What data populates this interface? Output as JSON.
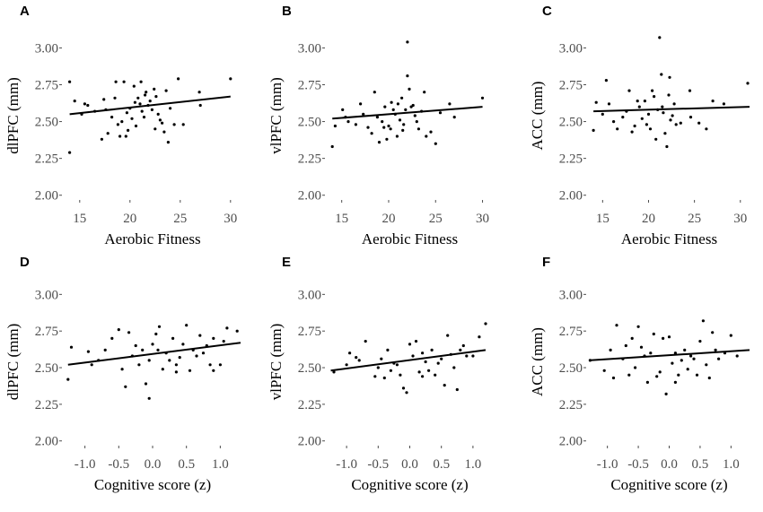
{
  "chart_data": [
    {
      "type": "scatter",
      "panel": "A",
      "xlabel": "Aerobic Fitness",
      "ylabel": "dlPFC (mm)",
      "xlim": [
        13.5,
        31
      ],
      "ylim": [
        1.98,
        3.1
      ],
      "xticks": [
        15,
        20,
        25,
        30
      ],
      "xtick_labels": [
        "15",
        "20",
        "25",
        "30"
      ],
      "yticks": [
        2.0,
        2.25,
        2.5,
        2.75,
        3.0
      ],
      "ytick_labels": [
        "2.00",
        "2.25",
        "2.50",
        "2.75",
        "3.00"
      ],
      "fit": [
        [
          14,
          2.55
        ],
        [
          30,
          2.67
        ]
      ],
      "points": [
        [
          14,
          2.29
        ],
        [
          14,
          2.77
        ],
        [
          14.5,
          2.64
        ],
        [
          15.2,
          2.55
        ],
        [
          15.5,
          2.62
        ],
        [
          15.8,
          2.61
        ],
        [
          16.5,
          2.57
        ],
        [
          17.2,
          2.38
        ],
        [
          17.4,
          2.65
        ],
        [
          17.6,
          2.58
        ],
        [
          17.8,
          2.42
        ],
        [
          18.2,
          2.53
        ],
        [
          18.5,
          2.66
        ],
        [
          18.6,
          2.77
        ],
        [
          18.8,
          2.48
        ],
        [
          19,
          2.4
        ],
        [
          19.2,
          2.5
        ],
        [
          19.4,
          2.77
        ],
        [
          19.6,
          2.4
        ],
        [
          19.8,
          2.44
        ],
        [
          20,
          2.59
        ],
        [
          20.2,
          2.52
        ],
        [
          20.4,
          2.74
        ],
        [
          20.6,
          2.47
        ],
        [
          20.8,
          2.66
        ],
        [
          21,
          2.62
        ],
        [
          21.2,
          2.57
        ],
        [
          21.4,
          2.53
        ],
        [
          21.6,
          2.7
        ],
        [
          21.8,
          2.61
        ],
        [
          22,
          2.64
        ],
        [
          22.2,
          2.58
        ],
        [
          22.4,
          2.72
        ],
        [
          22.6,
          2.67
        ],
        [
          22.8,
          2.55
        ],
        [
          23,
          2.51
        ],
        [
          23.2,
          2.49
        ],
        [
          23.4,
          2.43
        ],
        [
          23.6,
          2.71
        ],
        [
          23.8,
          2.36
        ],
        [
          24,
          2.59
        ],
        [
          24.4,
          2.48
        ],
        [
          24.8,
          2.79
        ],
        [
          25.3,
          2.48
        ],
        [
          26.9,
          2.7
        ],
        [
          27,
          2.61
        ],
        [
          30,
          2.79
        ],
        [
          20.5,
          2.63
        ],
        [
          21.5,
          2.68
        ],
        [
          22.5,
          2.45
        ],
        [
          21.1,
          2.77
        ],
        [
          19.7,
          2.56
        ]
      ]
    },
    {
      "type": "scatter",
      "panel": "B",
      "xlabel": "Aerobic Fitness",
      "ylabel": "vlPFC (mm)",
      "xlim": [
        13.5,
        31
      ],
      "ylim": [
        1.98,
        3.1
      ],
      "xticks": [
        15,
        20,
        25,
        30
      ],
      "xtick_labels": [
        "15",
        "20",
        "25",
        "30"
      ],
      "yticks": [
        2.0,
        2.25,
        2.5,
        2.75,
        3.0
      ],
      "ytick_labels": [
        "2.00",
        "2.25",
        "2.50",
        "2.75",
        "3.00"
      ],
      "fit": [
        [
          14,
          2.52
        ],
        [
          30,
          2.6
        ]
      ],
      "points": [
        [
          14,
          2.33
        ],
        [
          14.3,
          2.47
        ],
        [
          15.1,
          2.58
        ],
        [
          15.4,
          2.53
        ],
        [
          15.7,
          2.5
        ],
        [
          16.5,
          2.48
        ],
        [
          17,
          2.62
        ],
        [
          17.3,
          2.55
        ],
        [
          17.8,
          2.46
        ],
        [
          18.2,
          2.42
        ],
        [
          18.5,
          2.7
        ],
        [
          18.8,
          2.53
        ],
        [
          19,
          2.36
        ],
        [
          19.3,
          2.5
        ],
        [
          19.5,
          2.46
        ],
        [
          19.8,
          2.38
        ],
        [
          20,
          2.47
        ],
        [
          20.3,
          2.63
        ],
        [
          20.5,
          2.58
        ],
        [
          20.7,
          2.55
        ],
        [
          20.9,
          2.4
        ],
        [
          21,
          2.62
        ],
        [
          21.2,
          2.51
        ],
        [
          21.4,
          2.66
        ],
        [
          21.6,
          2.48
        ],
        [
          21.8,
          2.58
        ],
        [
          22,
          3.04
        ],
        [
          22,
          2.81
        ],
        [
          22.2,
          2.72
        ],
        [
          22.4,
          2.6
        ],
        [
          22.6,
          2.61
        ],
        [
          22.8,
          2.54
        ],
        [
          23,
          2.5
        ],
        [
          23.2,
          2.45
        ],
        [
          23.5,
          2.57
        ],
        [
          23.8,
          2.7
        ],
        [
          24,
          2.4
        ],
        [
          24.5,
          2.43
        ],
        [
          25,
          2.35
        ],
        [
          25.5,
          2.56
        ],
        [
          26.5,
          2.62
        ],
        [
          27,
          2.53
        ],
        [
          30,
          2.66
        ],
        [
          20.2,
          2.45
        ],
        [
          21.5,
          2.44
        ],
        [
          19.6,
          2.6
        ]
      ]
    },
    {
      "type": "scatter",
      "panel": "C",
      "xlabel": "Aerobic Fitness",
      "ylabel": "ACC (mm)",
      "xlim": [
        13.5,
        31
      ],
      "ylim": [
        1.98,
        3.1
      ],
      "xticks": [
        15,
        20,
        25,
        30
      ],
      "xtick_labels": [
        "15",
        "20",
        "25",
        "30"
      ],
      "yticks": [
        2.0,
        2.25,
        2.5,
        2.75,
        3.0
      ],
      "ytick_labels": [
        "2.00",
        "2.25",
        "2.50",
        "2.75",
        "3.00"
      ],
      "fit": [
        [
          14,
          2.57
        ],
        [
          31,
          2.6
        ]
      ],
      "points": [
        [
          14,
          2.44
        ],
        [
          14.3,
          2.63
        ],
        [
          15,
          2.55
        ],
        [
          15.4,
          2.78
        ],
        [
          15.7,
          2.62
        ],
        [
          16.2,
          2.5
        ],
        [
          16.6,
          2.45
        ],
        [
          17.2,
          2.53
        ],
        [
          17.6,
          2.57
        ],
        [
          17.9,
          2.71
        ],
        [
          18.2,
          2.43
        ],
        [
          18.5,
          2.47
        ],
        [
          18.8,
          2.64
        ],
        [
          19,
          2.6
        ],
        [
          19.3,
          2.52
        ],
        [
          19.6,
          2.64
        ],
        [
          19.8,
          2.48
        ],
        [
          20,
          2.55
        ],
        [
          20.2,
          2.45
        ],
        [
          20.4,
          2.71
        ],
        [
          20.6,
          2.67
        ],
        [
          20.8,
          2.38
        ],
        [
          21,
          2.58
        ],
        [
          21.2,
          3.07
        ],
        [
          21.4,
          2.82
        ],
        [
          21.6,
          2.56
        ],
        [
          21.8,
          2.42
        ],
        [
          22,
          2.33
        ],
        [
          22.2,
          2.68
        ],
        [
          22.4,
          2.51
        ],
        [
          22.6,
          2.54
        ],
        [
          22.8,
          2.62
        ],
        [
          23,
          2.48
        ],
        [
          23.5,
          2.49
        ],
        [
          24.5,
          2.71
        ],
        [
          24.6,
          2.53
        ],
        [
          25.5,
          2.49
        ],
        [
          26.3,
          2.45
        ],
        [
          27,
          2.64
        ],
        [
          28.2,
          2.62
        ],
        [
          30.8,
          2.76
        ],
        [
          21.5,
          2.6
        ],
        [
          22.3,
          2.8
        ]
      ]
    },
    {
      "type": "scatter",
      "panel": "D",
      "xlabel": "Cognitive score (z)",
      "ylabel": "dlPFC (mm)",
      "xlim": [
        -1.3,
        1.3
      ],
      "ylim": [
        1.98,
        3.1
      ],
      "xticks": [
        -1.0,
        -0.5,
        0.0,
        0.5,
        1.0
      ],
      "xtick_labels": [
        "-1.0",
        "-0.5",
        "0.0",
        "0.5",
        "1.0"
      ],
      "yticks": [
        2.0,
        2.25,
        2.5,
        2.75,
        3.0
      ],
      "ytick_labels": [
        "2.00",
        "2.25",
        "2.50",
        "2.75",
        "3.00"
      ],
      "fit": [
        [
          -1.25,
          2.52
        ],
        [
          1.3,
          2.67
        ]
      ],
      "points": [
        [
          -1.25,
          2.42
        ],
        [
          -1.2,
          2.64
        ],
        [
          -0.95,
          2.61
        ],
        [
          -0.9,
          2.52
        ],
        [
          -0.8,
          2.55
        ],
        [
          -0.6,
          2.7
        ],
        [
          -0.5,
          2.76
        ],
        [
          -0.45,
          2.49
        ],
        [
          -0.4,
          2.37
        ],
        [
          -0.35,
          2.74
        ],
        [
          -0.3,
          2.58
        ],
        [
          -0.25,
          2.65
        ],
        [
          -0.2,
          2.52
        ],
        [
          -0.15,
          2.62
        ],
        [
          -0.1,
          2.39
        ],
        [
          -0.05,
          2.55
        ],
        [
          0,
          2.66
        ],
        [
          0.05,
          2.73
        ],
        [
          0.08,
          2.62
        ],
        [
          0.1,
          2.78
        ],
        [
          0.15,
          2.49
        ],
        [
          0.2,
          2.6
        ],
        [
          0.25,
          2.55
        ],
        [
          0.3,
          2.7
        ],
        [
          0.35,
          2.47
        ],
        [
          0.4,
          2.57
        ],
        [
          0.45,
          2.66
        ],
        [
          0.5,
          2.79
        ],
        [
          0.55,
          2.48
        ],
        [
          0.6,
          2.62
        ],
        [
          0.65,
          2.58
        ],
        [
          0.7,
          2.72
        ],
        [
          0.75,
          2.6
        ],
        [
          0.8,
          2.65
        ],
        [
          0.85,
          2.52
        ],
        [
          0.9,
          2.7
        ],
        [
          1.0,
          2.52
        ],
        [
          1.05,
          2.68
        ],
        [
          1.1,
          2.77
        ],
        [
          1.25,
          2.75
        ],
        [
          -0.05,
          2.29
        ],
        [
          0.35,
          2.52
        ],
        [
          -0.7,
          2.62
        ],
        [
          0.9,
          2.48
        ]
      ]
    },
    {
      "type": "scatter",
      "panel": "E",
      "xlabel": "Cognitive score (z)",
      "ylabel": "vlPFC (mm)",
      "xlim": [
        -1.3,
        1.3
      ],
      "ylim": [
        1.98,
        3.1
      ],
      "xticks": [
        -1.0,
        -0.5,
        0.0,
        0.5,
        1.0
      ],
      "xtick_labels": [
        "-1.0",
        "-0.5",
        "0.0",
        "0.5",
        "1.0"
      ],
      "yticks": [
        2.0,
        2.25,
        2.5,
        2.75,
        3.0
      ],
      "ytick_labels": [
        "2.00",
        "2.25",
        "2.50",
        "2.75",
        "3.00"
      ],
      "fit": [
        [
          -1.25,
          2.48
        ],
        [
          1.2,
          2.62
        ]
      ],
      "points": [
        [
          -1.2,
          2.47
        ],
        [
          -1.0,
          2.52
        ],
        [
          -0.95,
          2.6
        ],
        [
          -0.85,
          2.57
        ],
        [
          -0.7,
          2.68
        ],
        [
          -0.55,
          2.44
        ],
        [
          -0.5,
          2.5
        ],
        [
          -0.45,
          2.56
        ],
        [
          -0.4,
          2.43
        ],
        [
          -0.35,
          2.62
        ],
        [
          -0.3,
          2.48
        ],
        [
          -0.25,
          2.53
        ],
        [
          -0.2,
          2.52
        ],
        [
          -0.15,
          2.45
        ],
        [
          -0.1,
          2.36
        ],
        [
          -0.05,
          2.33
        ],
        [
          0,
          2.66
        ],
        [
          0.05,
          2.58
        ],
        [
          0.1,
          2.68
        ],
        [
          0.15,
          2.47
        ],
        [
          0.2,
          2.6
        ],
        [
          0.25,
          2.54
        ],
        [
          0.3,
          2.48
        ],
        [
          0.35,
          2.62
        ],
        [
          0.4,
          2.45
        ],
        [
          0.45,
          2.53
        ],
        [
          0.5,
          2.56
        ],
        [
          0.55,
          2.38
        ],
        [
          0.6,
          2.72
        ],
        [
          0.65,
          2.59
        ],
        [
          0.7,
          2.5
        ],
        [
          0.75,
          2.35
        ],
        [
          0.8,
          2.62
        ],
        [
          0.85,
          2.65
        ],
        [
          0.9,
          2.58
        ],
        [
          1.0,
          2.58
        ],
        [
          1.1,
          2.71
        ],
        [
          1.2,
          2.8
        ],
        [
          -0.8,
          2.55
        ],
        [
          0.2,
          2.44
        ]
      ]
    },
    {
      "type": "scatter",
      "panel": "F",
      "xlabel": "Cognitive score (z)",
      "ylabel": "ACC (mm)",
      "xlim": [
        -1.3,
        1.3
      ],
      "ylim": [
        1.98,
        3.1
      ],
      "xticks": [
        -1.0,
        -0.5,
        0.0,
        0.5,
        1.0
      ],
      "xtick_labels": [
        "-1.0",
        "-0.5",
        "0.0",
        "0.5",
        "1.0"
      ],
      "yticks": [
        2.0,
        2.25,
        2.5,
        2.75,
        3.0
      ],
      "ytick_labels": [
        "2.00",
        "2.25",
        "2.50",
        "2.75",
        "3.00"
      ],
      "fit": [
        [
          -1.3,
          2.55
        ],
        [
          1.3,
          2.62
        ]
      ],
      "points": [
        [
          -1.28,
          2.55
        ],
        [
          -1.05,
          2.48
        ],
        [
          -0.95,
          2.62
        ],
        [
          -0.9,
          2.43
        ],
        [
          -0.85,
          2.79
        ],
        [
          -0.75,
          2.56
        ],
        [
          -0.65,
          2.45
        ],
        [
          -0.6,
          2.7
        ],
        [
          -0.55,
          2.5
        ],
        [
          -0.5,
          2.78
        ],
        [
          -0.45,
          2.64
        ],
        [
          -0.4,
          2.58
        ],
        [
          -0.35,
          2.4
        ],
        [
          -0.3,
          2.6
        ],
        [
          -0.25,
          2.73
        ],
        [
          -0.2,
          2.44
        ],
        [
          -0.15,
          2.47
        ],
        [
          -0.1,
          2.7
        ],
        [
          -0.05,
          2.32
        ],
        [
          0,
          2.71
        ],
        [
          0.05,
          2.53
        ],
        [
          0.1,
          2.6
        ],
        [
          0.15,
          2.45
        ],
        [
          0.2,
          2.55
        ],
        [
          0.25,
          2.62
        ],
        [
          0.3,
          2.49
        ],
        [
          0.35,
          2.58
        ],
        [
          0.4,
          2.56
        ],
        [
          0.45,
          2.45
        ],
        [
          0.5,
          2.68
        ],
        [
          0.55,
          2.82
        ],
        [
          0.6,
          2.52
        ],
        [
          0.65,
          2.43
        ],
        [
          0.7,
          2.74
        ],
        [
          0.75,
          2.62
        ],
        [
          0.8,
          2.56
        ],
        [
          0.9,
          2.6
        ],
        [
          1.0,
          2.72
        ],
        [
          1.1,
          2.58
        ],
        [
          -0.7,
          2.65
        ],
        [
          0.1,
          2.4
        ]
      ]
    }
  ]
}
